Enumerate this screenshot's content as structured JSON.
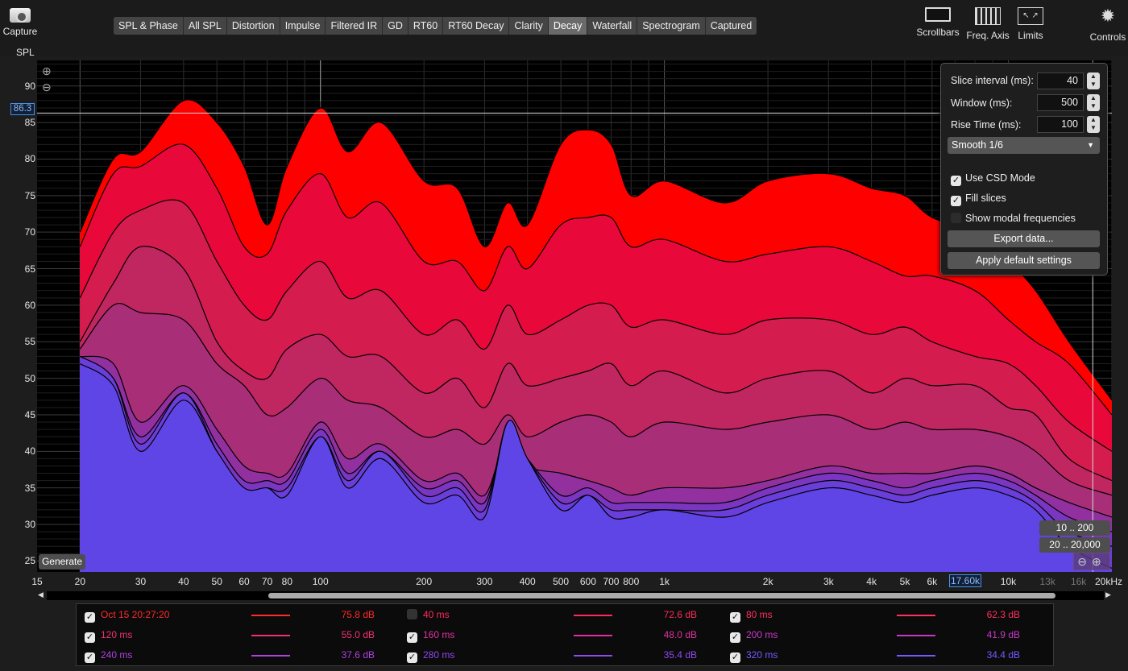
{
  "toolbar": {
    "capture_label": "Capture",
    "tabs": [
      "SPL & Phase",
      "All SPL",
      "Distortion",
      "Impulse",
      "Filtered IR",
      "GD",
      "RT60",
      "RT60 Decay",
      "Clarity",
      "Decay",
      "Waterfall",
      "Spectrogram",
      "Captured"
    ],
    "active_tab": "Decay",
    "scrollbars_label": "Scrollbars",
    "freq_axis_label": "Freq. Axis",
    "limits_label": "Limits",
    "controls_label": "Controls"
  },
  "axis": {
    "y_title": "SPL",
    "y_ticks": [
      "90",
      "85",
      "80",
      "75",
      "70",
      "65",
      "60",
      "55",
      "50",
      "45",
      "40",
      "35",
      "30",
      "25"
    ],
    "x_ticks": [
      {
        "label": "15",
        "f": 15
      },
      {
        "label": "20",
        "f": 20
      },
      {
        "label": "30",
        "f": 30
      },
      {
        "label": "40",
        "f": 40
      },
      {
        "label": "50",
        "f": 50
      },
      {
        "label": "60",
        "f": 60
      },
      {
        "label": "70",
        "f": 70
      },
      {
        "label": "80",
        "f": 80
      },
      {
        "label": "100",
        "f": 100
      },
      {
        "label": "200",
        "f": 200
      },
      {
        "label": "300",
        "f": 300
      },
      {
        "label": "400",
        "f": 400
      },
      {
        "label": "500",
        "f": 500
      },
      {
        "label": "600",
        "f": 600
      },
      {
        "label": "700",
        "f": 700
      },
      {
        "label": "800",
        "f": 800
      },
      {
        "label": "1k",
        "f": 1000
      },
      {
        "label": "2k",
        "f": 2000
      },
      {
        "label": "3k",
        "f": 3000
      },
      {
        "label": "4k",
        "f": 4000
      },
      {
        "label": "5k",
        "f": 5000
      },
      {
        "label": "6k",
        "f": 6000
      },
      {
        "label": "10k",
        "f": 10000
      },
      {
        "label": "13k",
        "f": 13000,
        "dim": true
      },
      {
        "label": "16k",
        "f": 16000,
        "dim": true
      },
      {
        "label": "20kHz",
        "f": 20000
      }
    ],
    "cursor_y_value": "86.3",
    "cursor_x_value": "17.60k"
  },
  "panel": {
    "slice_interval_label": "Slice interval (ms):",
    "slice_interval_value": "40",
    "window_label": "Window (ms):",
    "window_value": "500",
    "rise_time_label": "Rise Time (ms):",
    "rise_time_value": "100",
    "smoothing": "Smooth 1/6",
    "use_csd_label": "Use CSD Mode",
    "use_csd": true,
    "fill_slices_label": "Fill slices",
    "fill_slices": true,
    "show_modal_label": "Show modal frequencies",
    "show_modal": false,
    "export_label": "Export data...",
    "defaults_label": "Apply default settings"
  },
  "plot_controls": {
    "generate_label": "Generate",
    "y_range": "10 .. 200",
    "x_range": "20 .. 20,000",
    "zoom_out_icon": "minus-circle-icon",
    "zoom_in_icon": "plus-circle-icon"
  },
  "chart_data": {
    "type": "area",
    "xscale": "log",
    "xlim": [
      15,
      20000
    ],
    "ylim": [
      23.5,
      93.5
    ],
    "ylabel": "SPL",
    "grid": true,
    "x": [
      20,
      25,
      30,
      40,
      50,
      60,
      70,
      80,
      100,
      120,
      150,
      200,
      250,
      300,
      350,
      400,
      500,
      600,
      700,
      800,
      1000,
      1500,
      2000,
      3000,
      4000,
      5000,
      6000,
      8000,
      10000,
      12000,
      15000,
      20000
    ],
    "series": [
      {
        "name": "Oct 15 20:27:20",
        "color": "#ff0000",
        "values": [
          70,
          80,
          81,
          88,
          85,
          79,
          71,
          79,
          87,
          81,
          85,
          77,
          76,
          68,
          74,
          71,
          82,
          84,
          82,
          75,
          77,
          74,
          77,
          78,
          76,
          75,
          72,
          70,
          66,
          62,
          55,
          47
        ]
      },
      {
        "name": "40 ms",
        "color": "#e8083a",
        "values": [
          68,
          78,
          79,
          82,
          76,
          68,
          67,
          73,
          78,
          72,
          74,
          66,
          66,
          62,
          68,
          65,
          71,
          72,
          72,
          68,
          69,
          66,
          67,
          68,
          66,
          64,
          64,
          62,
          58,
          55,
          52,
          45
        ]
      },
      {
        "name": "80 ms",
        "color": "#d41c4e",
        "values": [
          61,
          70,
          73,
          74,
          66,
          60,
          58,
          62,
          66,
          61,
          62,
          56,
          58,
          54,
          60,
          56,
          58,
          60,
          60,
          57,
          58,
          56,
          58,
          58,
          56,
          57,
          55,
          53,
          52,
          49,
          44,
          40
        ]
      },
      {
        "name": "120 ms",
        "color": "#c02660",
        "values": [
          55,
          63,
          68,
          65,
          55,
          51,
          50,
          54,
          56,
          53,
          53,
          48,
          50,
          46,
          52,
          49,
          50,
          51,
          52,
          49,
          51,
          48,
          50,
          51,
          48,
          50,
          49,
          49,
          46,
          45,
          39,
          36
        ]
      },
      {
        "name": "160 ms",
        "color": "#a82e78",
        "values": [
          54,
          60,
          59,
          58,
          52,
          49,
          45,
          46,
          50,
          47,
          46,
          42,
          43,
          41,
          45,
          42,
          44,
          45,
          44,
          42,
          44,
          43,
          44,
          45,
          43,
          44,
          43,
          43,
          42,
          40,
          36,
          34
        ]
      },
      {
        "name": "200 ms",
        "color": "#9230a0",
        "values": [
          53,
          52,
          44,
          49,
          43,
          38,
          37,
          37,
          44,
          39,
          41,
          36,
          37,
          34,
          42,
          38,
          37,
          36,
          35,
          34,
          35,
          35,
          36,
          38,
          37,
          37,
          37,
          38,
          37,
          35,
          33,
          31
        ]
      },
      {
        "name": "240 ms",
        "color": "#7a36c0",
        "values": [
          53,
          50,
          42,
          48,
          41,
          36,
          36,
          36,
          43,
          37,
          40,
          35,
          36,
          33,
          43,
          39,
          34,
          35,
          33,
          33,
          33,
          33,
          35,
          37,
          36,
          35,
          36,
          37,
          36,
          34,
          31,
          29
        ]
      },
      {
        "name": "280 ms",
        "color": "#6a3ed8",
        "values": [
          53,
          50,
          41,
          48,
          40,
          35,
          35,
          35,
          42,
          36,
          40,
          34,
          35,
          32,
          44,
          39,
          33,
          34,
          32,
          32,
          32,
          32,
          34,
          36,
          35,
          34,
          35,
          36,
          35,
          33,
          29,
          27
        ]
      },
      {
        "name": "320 ms",
        "color": "#6045e6",
        "values": [
          52,
          49,
          40,
          47,
          40,
          35,
          35,
          34,
          42,
          35,
          39,
          33,
          34,
          31,
          44,
          39,
          32,
          34,
          31,
          31,
          32,
          31,
          33,
          35,
          34,
          33,
          34,
          35,
          34,
          32,
          27,
          24
        ]
      }
    ]
  },
  "legend": {
    "rows": [
      [
        {
          "label": "Oct 15 20:27:20",
          "checked": true,
          "color": "#ff2a2a",
          "value": "75.8 dB"
        },
        {
          "label": "40 ms",
          "checked": false,
          "color": "#ff2a5a",
          "value": "72.6 dB"
        },
        {
          "label": "80 ms",
          "checked": true,
          "color": "#ff3060",
          "value": "62.3 dB"
        }
      ],
      [
        {
          "label": "120 ms",
          "checked": true,
          "color": "#f03070",
          "value": "55.0 dB"
        },
        {
          "label": "160 ms",
          "checked": true,
          "color": "#e030a0",
          "value": "48.0 dB"
        },
        {
          "label": "200 ms",
          "checked": true,
          "color": "#c838c8",
          "value": "41.9 dB"
        }
      ],
      [
        {
          "label": "240 ms",
          "checked": true,
          "color": "#b040e0",
          "value": "37.6 dB"
        },
        {
          "label": "280 ms",
          "checked": true,
          "color": "#9048f0",
          "value": "35.4 dB"
        },
        {
          "label": "320 ms",
          "checked": true,
          "color": "#7a58ff",
          "value": "34.4 dB"
        }
      ]
    ]
  }
}
